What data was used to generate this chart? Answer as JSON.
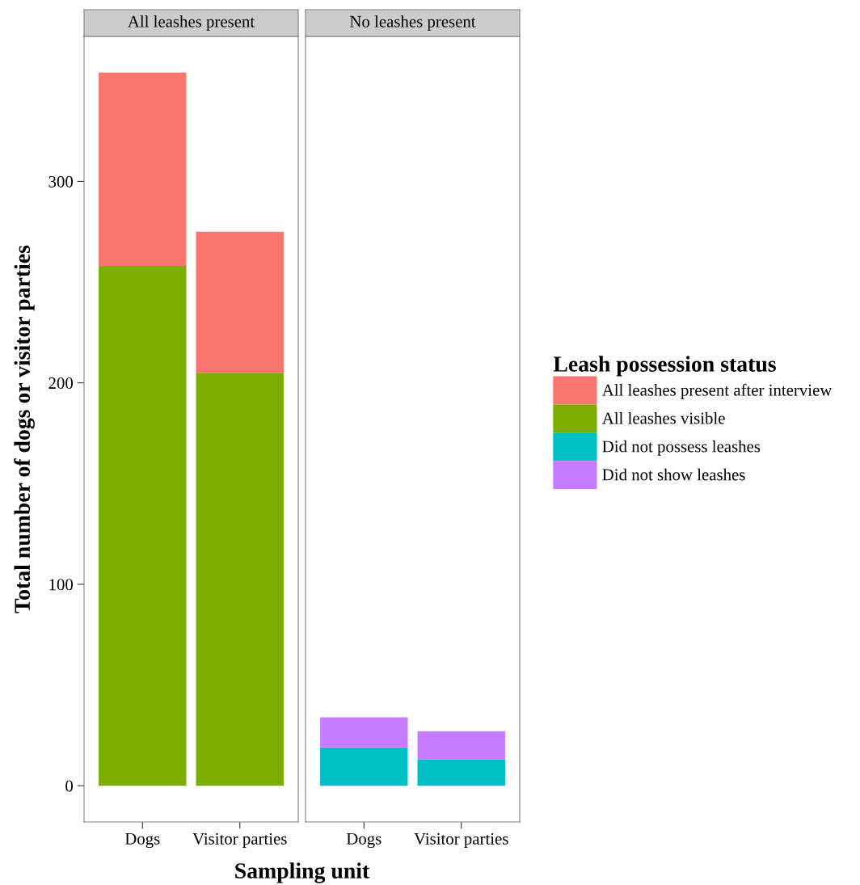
{
  "chart_data": [
    {
      "type": "bar",
      "title": "All leashes present",
      "legend": "right",
      "ylabel": "Total number of dogs or visitor parties",
      "annotations": [
        "Sampling unit"
      ],
      "categories": [
        "Dogs",
        "Visitor parties"
      ],
      "stacked": true,
      "ylim": [
        -18,
        372
      ],
      "yticks": [
        0,
        100,
        200,
        300
      ],
      "grid": false,
      "series": [
        {
          "name": "All leashes visible",
          "color": "#7cae00",
          "values": [
            258,
            205
          ]
        },
        {
          "name": "All leashes present after interview",
          "color": "#f8766d",
          "values": [
            96,
            70
          ]
        }
      ]
    },
    {
      "type": "bar",
      "title": "No leashes present",
      "legend_title": "Leash possession status",
      "legend": "right",
      "categories": [
        "Dogs",
        "Visitor parties"
      ],
      "stacked": true,
      "ylim": [
        -18,
        372
      ],
      "yticks": [
        0,
        100,
        200,
        300
      ],
      "tick_labels": "x",
      "grid": false,
      "series": [
        {
          "name": "Did not possess leashes",
          "color": "#00bfc4",
          "values": [
            19,
            13
          ]
        },
        {
          "name": "Did not show leashes",
          "color": "#c77cff",
          "values": [
            15,
            14
          ]
        }
      ]
    }
  ]
}
